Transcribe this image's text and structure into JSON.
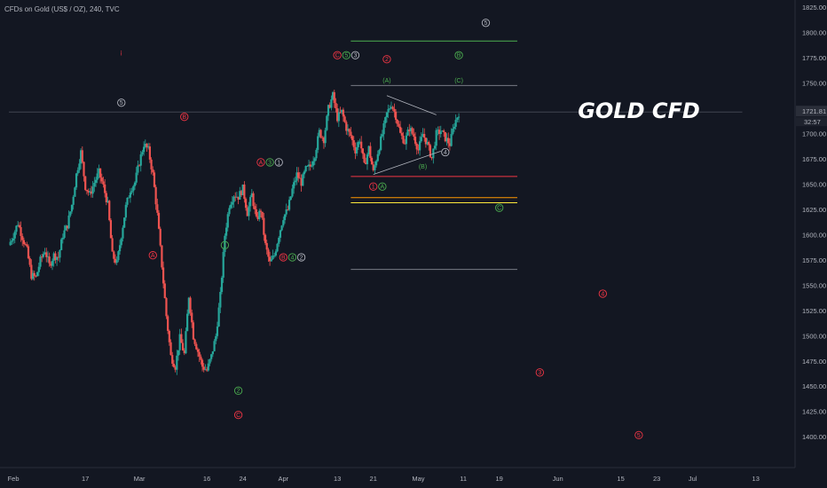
{
  "header": {
    "title": "CFDs on Gold (US$ / OZ), 240, TVC"
  },
  "chart_data": {
    "type": "candlestick",
    "title": "CFDs on Gold (US$ / OZ), 240, TVC",
    "annotation": "GOLD CFD",
    "ylim": [
      1376,
      1830
    ],
    "y_ticks": [
      1825,
      1800,
      1775,
      1750,
      1725,
      1700,
      1675,
      1650,
      1625,
      1600,
      1575,
      1550,
      1525,
      1500,
      1475,
      1450,
      1425,
      1400
    ],
    "x_ticks": [
      {
        "label": "Feb",
        "x": 1
      },
      {
        "label": "17",
        "x": 17
      },
      {
        "label": "Mar",
        "x": 29
      },
      {
        "label": "16",
        "x": 44
      },
      {
        "label": "24",
        "x": 52
      },
      {
        "label": "Apr",
        "x": 61
      },
      {
        "label": "13",
        "x": 73
      },
      {
        "label": "21",
        "x": 81
      },
      {
        "label": "May",
        "x": 91
      },
      {
        "label": "11",
        "x": 101
      },
      {
        "label": "19",
        "x": 109
      },
      {
        "label": "Jun",
        "x": 122
      },
      {
        "label": "15",
        "x": 136
      },
      {
        "label": "23",
        "x": 144
      },
      {
        "label": "Jul",
        "x": 152
      },
      {
        "label": "13",
        "x": 166
      }
    ],
    "xlim": [
      0,
      170
    ],
    "last_price": {
      "value": "1721.81",
      "countdown": "32:57",
      "y": 1721.81
    },
    "price_path": [
      [
        0,
        1590
      ],
      [
        1,
        1600
      ],
      [
        2,
        1612
      ],
      [
        3,
        1598
      ],
      [
        4,
        1585
      ],
      [
        5,
        1560
      ],
      [
        6,
        1558
      ],
      [
        7,
        1575
      ],
      [
        8,
        1585
      ],
      [
        9,
        1570
      ],
      [
        10,
        1580
      ],
      [
        11,
        1578
      ],
      [
        12,
        1600
      ],
      [
        13,
        1610
      ],
      [
        14,
        1630
      ],
      [
        15,
        1660
      ],
      [
        16,
        1682
      ],
      [
        17,
        1648
      ],
      [
        18,
        1640
      ],
      [
        19,
        1652
      ],
      [
        20,
        1662
      ],
      [
        21,
        1648
      ],
      [
        22,
        1630
      ],
      [
        23,
        1580
      ],
      [
        24,
        1572
      ],
      [
        25,
        1600
      ],
      [
        26,
        1628
      ],
      [
        27,
        1645
      ],
      [
        28,
        1652
      ],
      [
        29,
        1672
      ],
      [
        30,
        1690
      ],
      [
        31,
        1684
      ],
      [
        32,
        1660
      ],
      [
        33,
        1620
      ],
      [
        34,
        1570
      ],
      [
        35,
        1520
      ],
      [
        36,
        1480
      ],
      [
        37,
        1470
      ],
      [
        38,
        1498
      ],
      [
        39,
        1482
      ],
      [
        40,
        1540
      ],
      [
        41,
        1500
      ],
      [
        42,
        1485
      ],
      [
        43,
        1470
      ],
      [
        44,
        1466
      ],
      [
        45,
        1480
      ],
      [
        46,
        1500
      ],
      [
        47,
        1540
      ],
      [
        48,
        1600
      ],
      [
        49,
        1630
      ],
      [
        50,
        1640
      ],
      [
        51,
        1638
      ],
      [
        52,
        1646
      ],
      [
        53,
        1622
      ],
      [
        54,
        1640
      ],
      [
        55,
        1615
      ],
      [
        56,
        1625
      ],
      [
        57,
        1590
      ],
      [
        58,
        1572
      ],
      [
        59,
        1580
      ],
      [
        60,
        1600
      ],
      [
        61,
        1618
      ],
      [
        62,
        1625
      ],
      [
        63,
        1645
      ],
      [
        64,
        1660
      ],
      [
        65,
        1652
      ],
      [
        66,
        1665
      ],
      [
        67,
        1668
      ],
      [
        68,
        1680
      ],
      [
        69,
        1702
      ],
      [
        70,
        1695
      ],
      [
        71,
        1725
      ],
      [
        72,
        1738
      ],
      [
        73,
        1716
      ],
      [
        74,
        1722
      ],
      [
        75,
        1706
      ],
      [
        76,
        1698
      ],
      [
        77,
        1684
      ],
      [
        78,
        1695
      ],
      [
        79,
        1668
      ],
      [
        80,
        1686
      ],
      [
        81,
        1662
      ],
      [
        82,
        1682
      ],
      [
        83,
        1700
      ],
      [
        84,
        1720
      ],
      [
        85,
        1730
      ],
      [
        86,
        1718
      ],
      [
        87,
        1700
      ],
      [
        88,
        1692
      ],
      [
        89,
        1706
      ],
      [
        90,
        1698
      ],
      [
        91,
        1684
      ],
      [
        92,
        1700
      ],
      [
        93,
        1690
      ],
      [
        94,
        1676
      ],
      [
        95,
        1700
      ],
      [
        96,
        1703
      ],
      [
        97,
        1696
      ],
      [
        98,
        1690
      ],
      [
        99,
        1710
      ],
      [
        100,
        1721
      ]
    ],
    "hlines": [
      {
        "y": 1792,
        "x1": 76,
        "x2": 113,
        "color": "#4caf50"
      },
      {
        "y": 1748,
        "x1": 76,
        "x2": 113,
        "color": "#787b86"
      },
      {
        "y": 1721.81,
        "x1": 0,
        "x2": 163,
        "color": "#434651"
      },
      {
        "y": 1658,
        "x1": 76,
        "x2": 113,
        "color": "#f23645"
      },
      {
        "y": 1637,
        "x1": 76,
        "x2": 113,
        "color": "#ff9800"
      },
      {
        "y": 1632,
        "x1": 76,
        "x2": 113,
        "color": "#ffeb3b"
      },
      {
        "y": 1566,
        "x1": 76,
        "x2": 113,
        "color": "#787b86"
      }
    ],
    "triangle": [
      [
        84,
        1738
      ],
      [
        95,
        1719
      ],
      [
        96,
        1683
      ],
      [
        81,
        1660
      ]
    ],
    "wave_labels": [
      {
        "t": "5",
        "x": 106,
        "y": 1810,
        "c": "#b2b5be"
      },
      {
        "t": "ⅰ",
        "x": 25,
        "y": 1780,
        "c": "#f23645",
        "plain": true
      },
      {
        "t": "C",
        "x": 73,
        "y": 1778,
        "c": "#f23645"
      },
      {
        "t": "5",
        "x": 75,
        "y": 1778,
        "c": "#4caf50"
      },
      {
        "t": "3",
        "x": 77,
        "y": 1778,
        "c": "#b2b5be"
      },
      {
        "t": "2",
        "x": 84,
        "y": 1774,
        "c": "#f23645"
      },
      {
        "t": "B",
        "x": 100,
        "y": 1778,
        "c": "#4caf50"
      },
      {
        "t": "(A)",
        "x": 84,
        "y": 1753,
        "c": "#4caf50",
        "plain": true
      },
      {
        "t": "(C)",
        "x": 100,
        "y": 1753,
        "c": "#4caf50",
        "plain": true
      },
      {
        "t": "5",
        "x": 25,
        "y": 1731,
        "c": "#b2b5be"
      },
      {
        "t": "B",
        "x": 39,
        "y": 1717,
        "c": "#f23645"
      },
      {
        "t": "A",
        "x": 56,
        "y": 1672,
        "c": "#f23645"
      },
      {
        "t": "3",
        "x": 58,
        "y": 1672,
        "c": "#4caf50"
      },
      {
        "t": "1",
        "x": 60,
        "y": 1672,
        "c": "#b2b5be"
      },
      {
        "t": "4",
        "x": 97,
        "y": 1682,
        "c": "#b2b5be"
      },
      {
        "t": "(B)",
        "x": 92,
        "y": 1668,
        "c": "#4caf50",
        "plain": true
      },
      {
        "t": "1",
        "x": 81,
        "y": 1648,
        "c": "#f23645"
      },
      {
        "t": "A",
        "x": 83,
        "y": 1648,
        "c": "#4caf50"
      },
      {
        "t": "C",
        "x": 109,
        "y": 1627,
        "c": "#4caf50"
      },
      {
        "t": "1",
        "x": 48,
        "y": 1590,
        "c": "#4caf50"
      },
      {
        "t": "A",
        "x": 32,
        "y": 1580,
        "c": "#f23645"
      },
      {
        "t": "B",
        "x": 61,
        "y": 1578,
        "c": "#f23645"
      },
      {
        "t": "4",
        "x": 63,
        "y": 1578,
        "c": "#4caf50"
      },
      {
        "t": "2",
        "x": 65,
        "y": 1578,
        "c": "#b2b5be"
      },
      {
        "t": "4",
        "x": 132,
        "y": 1542,
        "c": "#f23645"
      },
      {
        "t": "3",
        "x": 118,
        "y": 1464,
        "c": "#f23645"
      },
      {
        "t": "2",
        "x": 51,
        "y": 1446,
        "c": "#4caf50"
      },
      {
        "t": "C",
        "x": 51,
        "y": 1422,
        "c": "#f23645"
      },
      {
        "t": "5",
        "x": 140,
        "y": 1402,
        "c": "#f23645"
      }
    ]
  }
}
